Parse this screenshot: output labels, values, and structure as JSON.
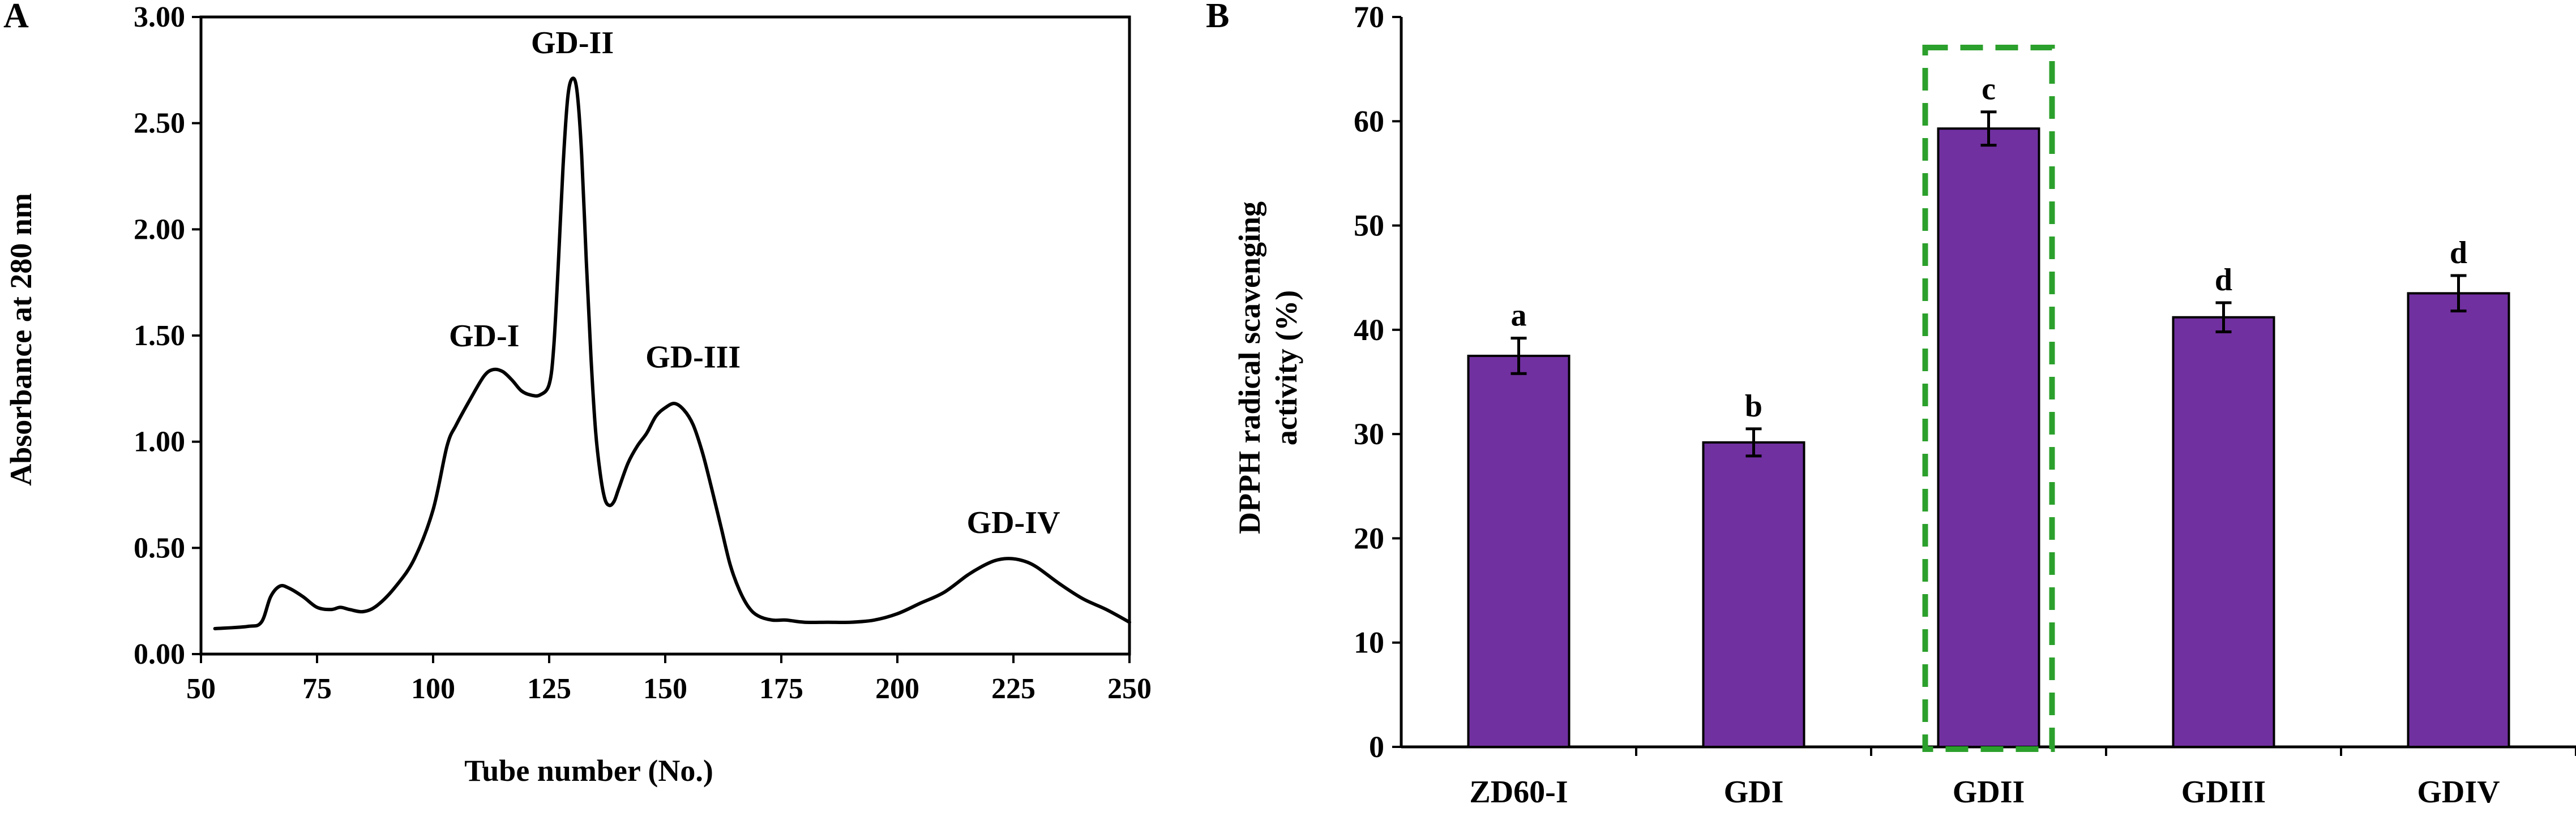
{
  "colors": {
    "bar_fill": "#7030A0",
    "highlight_box": "#2CA02C",
    "axis": "#000000"
  },
  "chart_data": [
    {
      "panel_label": "A",
      "type": "line",
      "xlabel": "Tube number (No.)",
      "ylabel": "Absorbance at 280 nm",
      "xlim": [
        50,
        250
      ],
      "ylim": [
        0,
        3
      ],
      "x_ticks": [
        "50",
        "75",
        "100",
        "125",
        "150",
        "175",
        "200",
        "225",
        "250"
      ],
      "y_ticks": [
        "0.00",
        "0.50",
        "1.00",
        "1.50",
        "2.00",
        "2.50",
        "3.00"
      ],
      "series": [
        {
          "name": "Absorbance",
          "x": [
            53,
            60,
            63,
            65,
            67,
            69,
            72,
            75,
            78,
            80,
            82,
            85,
            88,
            92,
            96,
            100,
            103,
            105,
            108,
            111,
            113,
            115,
            117,
            119,
            121,
            123,
            125,
            126,
            127,
            128,
            129,
            130,
            131,
            132,
            133,
            134,
            135,
            136,
            137,
            138,
            139,
            140,
            142,
            144,
            146,
            148,
            150,
            152,
            154,
            156,
            158,
            160,
            162,
            164,
            166,
            168,
            170,
            173,
            176,
            180,
            185,
            190,
            195,
            200,
            205,
            210,
            215,
            218,
            221,
            224,
            227,
            230,
            235,
            240,
            245,
            250
          ],
          "y": [
            0.12,
            0.13,
            0.15,
            0.27,
            0.32,
            0.31,
            0.27,
            0.22,
            0.21,
            0.22,
            0.21,
            0.2,
            0.23,
            0.32,
            0.45,
            0.68,
            0.98,
            1.08,
            1.2,
            1.31,
            1.34,
            1.33,
            1.29,
            1.24,
            1.22,
            1.22,
            1.27,
            1.45,
            1.85,
            2.3,
            2.62,
            2.71,
            2.65,
            2.35,
            1.85,
            1.4,
            1.05,
            0.85,
            0.73,
            0.7,
            0.72,
            0.78,
            0.9,
            0.98,
            1.04,
            1.12,
            1.16,
            1.18,
            1.15,
            1.08,
            0.95,
            0.78,
            0.6,
            0.42,
            0.3,
            0.22,
            0.18,
            0.16,
            0.16,
            0.15,
            0.15,
            0.15,
            0.16,
            0.19,
            0.24,
            0.29,
            0.37,
            0.41,
            0.44,
            0.45,
            0.44,
            0.41,
            0.33,
            0.26,
            0.21,
            0.15
          ]
        }
      ],
      "annotations": [
        {
          "text": "GD-I",
          "x": 111,
          "y": 1.45
        },
        {
          "text": "GD-II",
          "x": 130,
          "y": 2.83
        },
        {
          "text": "GD-III",
          "x": 156,
          "y": 1.35
        },
        {
          "text": "GD-IV",
          "x": 225,
          "y": 0.57
        }
      ]
    },
    {
      "panel_label": "B",
      "type": "bar",
      "xlabel": "",
      "ylabel_lines": [
        "DPPH radical scavenging",
        "activity (%)"
      ],
      "ylim": [
        0,
        70
      ],
      "y_ticks": [
        "0",
        "10",
        "20",
        "30",
        "40",
        "50",
        "60",
        "70"
      ],
      "categories": [
        "ZD60-I",
        "GDI",
        "GDII",
        "GDIII",
        "GDIV"
      ],
      "values": [
        37.5,
        29.2,
        59.3,
        41.2,
        43.5
      ],
      "errors": [
        1.7,
        1.3,
        1.6,
        1.4,
        1.7
      ],
      "significance_letters": [
        "a",
        "b",
        "c",
        "d",
        "d"
      ],
      "highlighted_category": "GDII"
    }
  ]
}
